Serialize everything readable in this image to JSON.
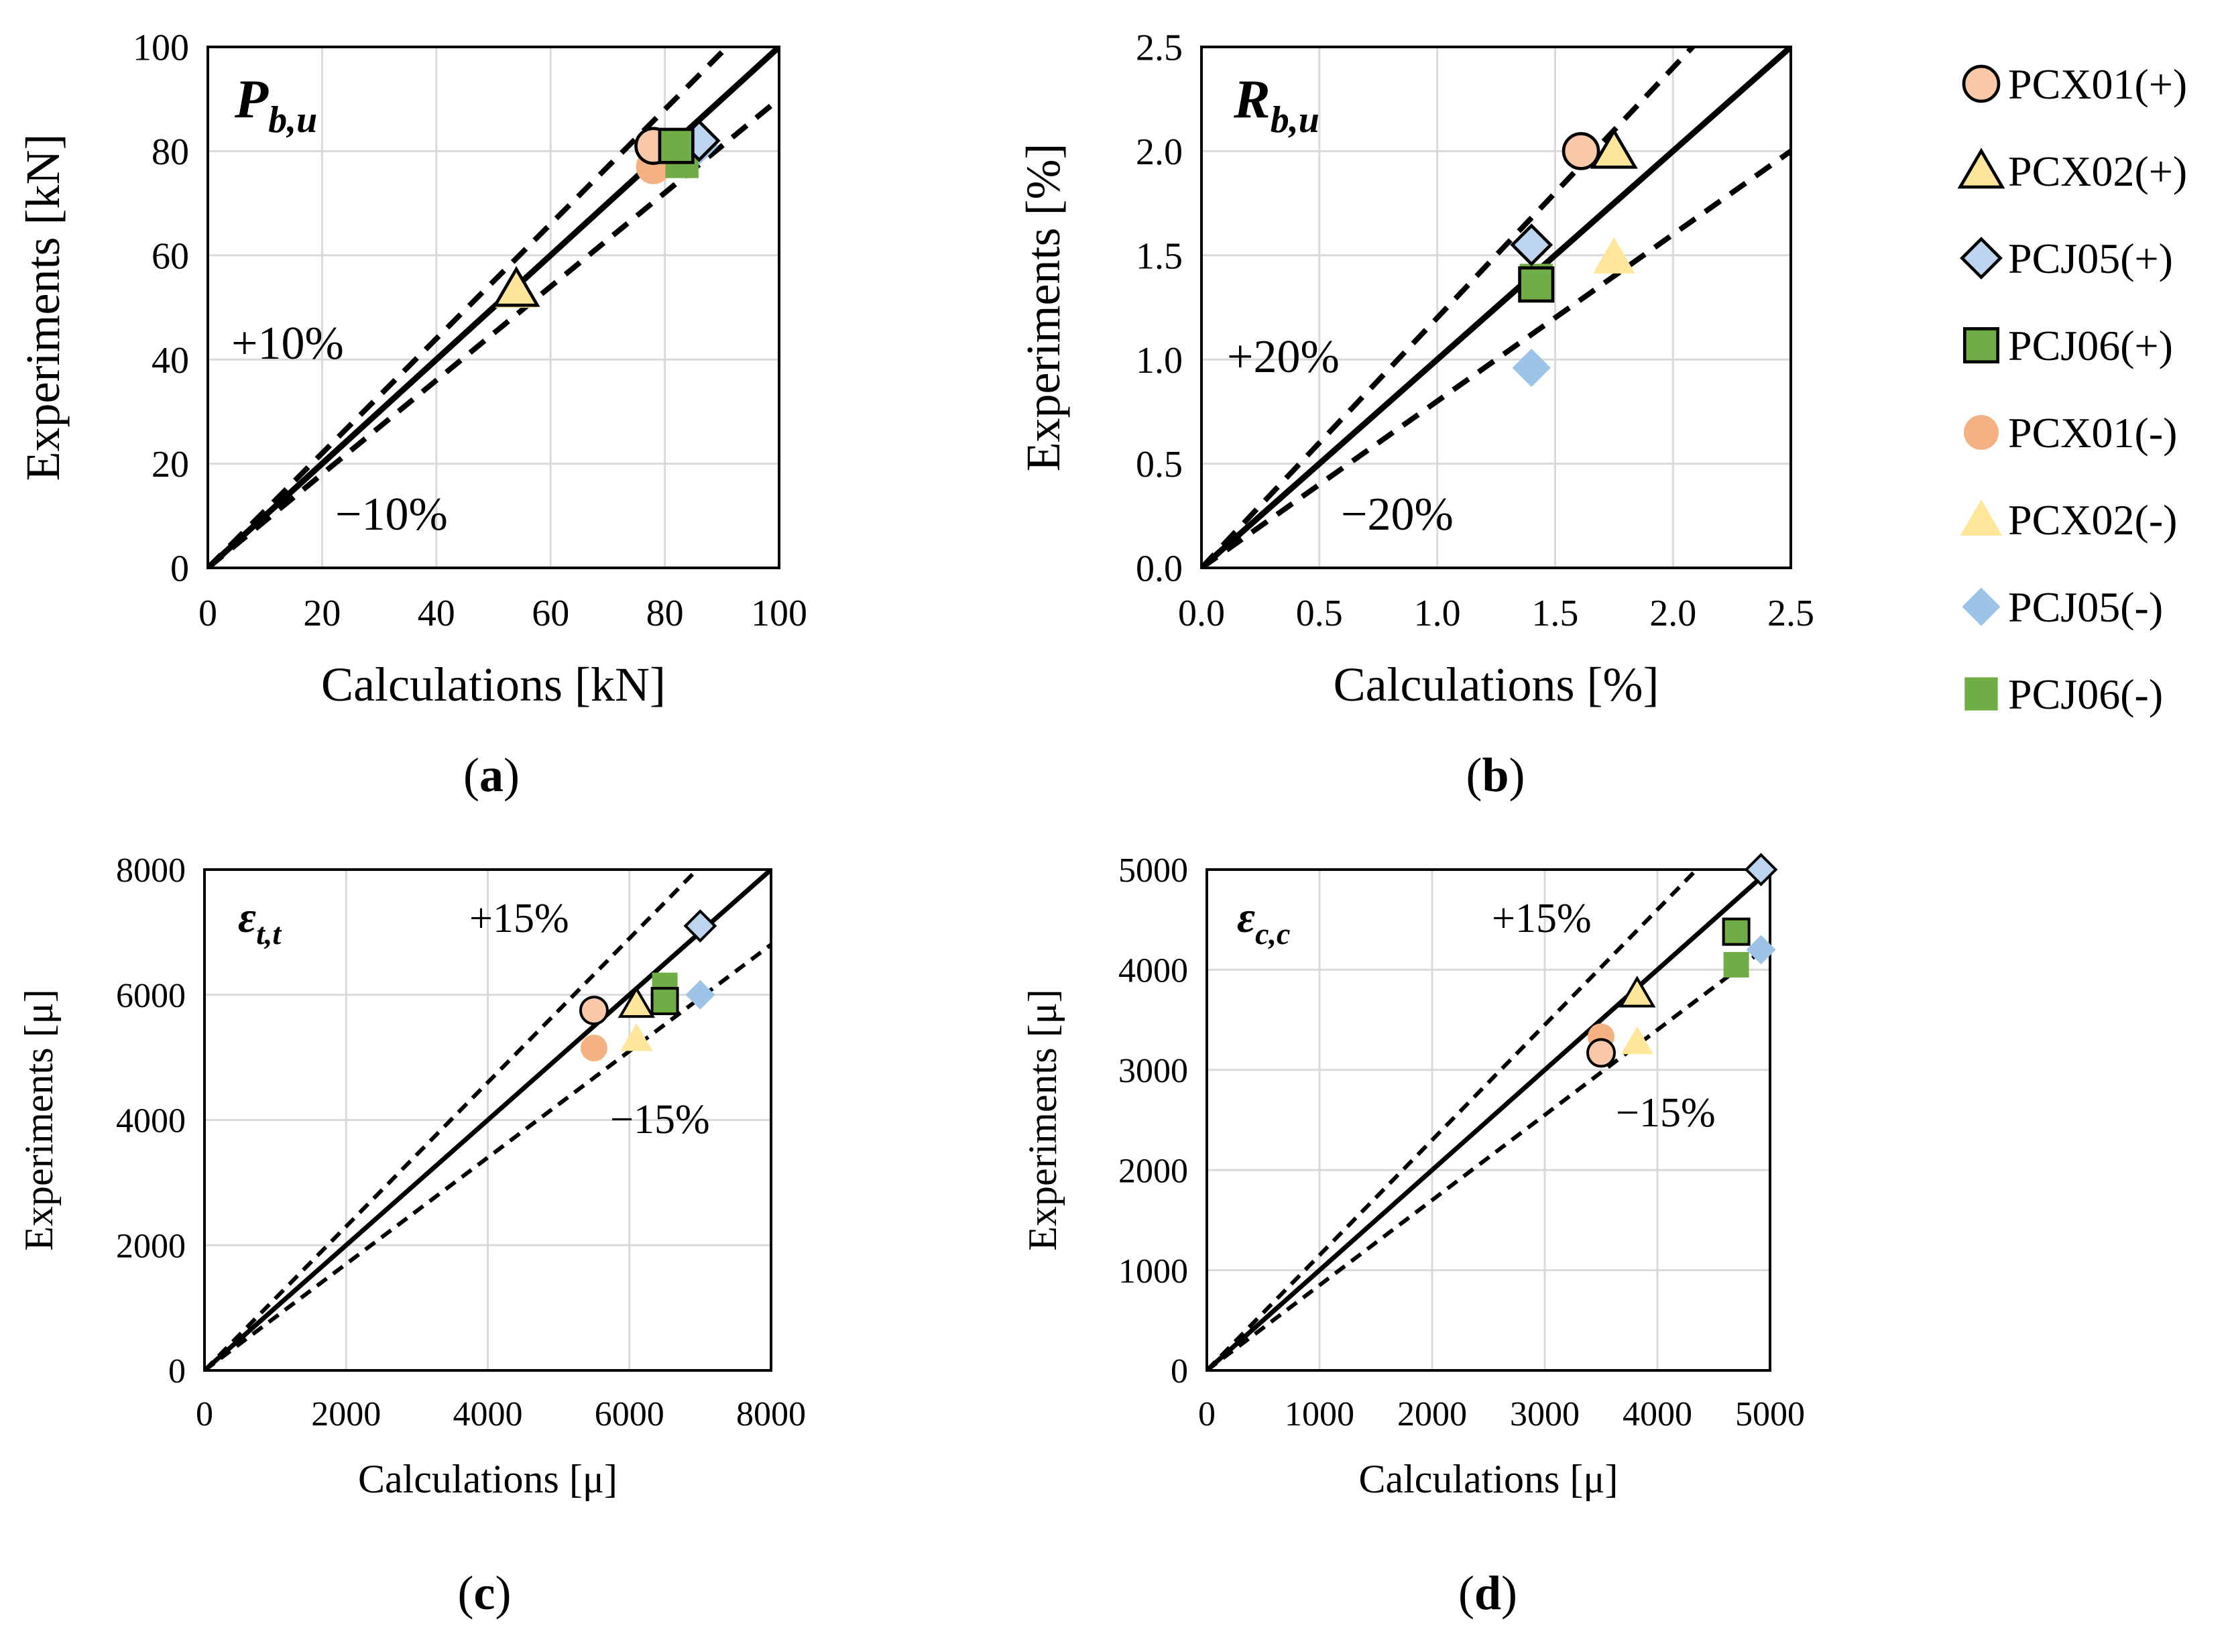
{
  "legend": [
    {
      "label": "PCX01(+)",
      "marker": "circle",
      "filled": false
    },
    {
      "label": "PCX02(+)",
      "marker": "triangle",
      "filled": false
    },
    {
      "label": "PCJ05(+)",
      "marker": "diamond",
      "filled": false
    },
    {
      "label": "PCJ06(+)",
      "marker": "square",
      "filled": false
    },
    {
      "label": "PCX01(-)",
      "marker": "circle",
      "filled": true
    },
    {
      "label": "PCX02(-)",
      "marker": "triangle",
      "filled": true
    },
    {
      "label": "PCJ05(-)",
      "marker": "diamond",
      "filled": true
    },
    {
      "label": "PCJ06(-)",
      "marker": "square",
      "filled": true
    }
  ],
  "colors": {
    "PCX01": "#f8c8a8",
    "PCX02": "#fde69a",
    "PCJ05": "#bcd4ee",
    "PCJ06": "#70ad47",
    "PCX01_light": "#f4b183",
    "PCX02_light": "#ffe699",
    "PCJ05_light": "#9dc3e6",
    "PCJ06_light": "#70ad47"
  },
  "chart_data": [
    {
      "id": "a",
      "type": "scatter",
      "panel_label": "a",
      "title": "P",
      "title_sub": "b,u",
      "xlabel": "Calculations [kN]",
      "ylabel": "Experiments [kN]",
      "xlim": [
        0,
        100
      ],
      "ylim": [
        0,
        100
      ],
      "xticks": [
        "0",
        "20",
        "40",
        "60",
        "80",
        "100"
      ],
      "yticks": [
        "0",
        "20",
        "40",
        "60",
        "80",
        "100"
      ],
      "tick_values": [
        0,
        20,
        40,
        60,
        80,
        100
      ],
      "band_upper": 1.1,
      "band_lower": 0.9,
      "band_upper_label": "+10%",
      "band_lower_label": "−10%",
      "series": [
        {
          "name": "PCX01(+)",
          "x": 78,
          "y": 81
        },
        {
          "name": "PCX02(+)",
          "x": 54,
          "y": 53.5
        },
        {
          "name": "PCJ05(+)",
          "x": 86,
          "y": 82
        },
        {
          "name": "PCJ06(+)",
          "x": 82,
          "y": 81
        },
        {
          "name": "PCX01(-)",
          "x": 78,
          "y": 77
        },
        {
          "name": "PCX02(-)",
          "x": 54,
          "y": 53
        },
        {
          "name": "PCJ05(-)",
          "x": 86,
          "y": 81
        },
        {
          "name": "PCJ06(-)",
          "x": 83,
          "y": 78
        }
      ]
    },
    {
      "id": "b",
      "type": "scatter",
      "panel_label": "b",
      "title": "R",
      "title_sub": "b,u",
      "xlabel": "Calculations [%]",
      "ylabel": "Experiments [%]",
      "xlim": [
        0,
        2.5
      ],
      "ylim": [
        0,
        2.5
      ],
      "xticks": [
        "0.0",
        "0.5",
        "1.0",
        "1.5",
        "2.0",
        "2.5"
      ],
      "yticks": [
        "0.0",
        "0.5",
        "1.0",
        "1.5",
        "2.0",
        "2.5"
      ],
      "tick_values": [
        0,
        0.5,
        1.0,
        1.5,
        2.0,
        2.5
      ],
      "band_upper": 1.2,
      "band_lower": 0.8,
      "band_upper_label": "+20%",
      "band_lower_label": "−20%",
      "series": [
        {
          "name": "PCX01(+)",
          "x": 1.61,
          "y": 2.0
        },
        {
          "name": "PCX02(+)",
          "x": 1.75,
          "y": 2.0
        },
        {
          "name": "PCJ05(+)",
          "x": 1.4,
          "y": 1.55
        },
        {
          "name": "PCJ06(+)",
          "x": 1.42,
          "y": 1.36
        },
        {
          "name": "PCX01(-)",
          "x": 1.61,
          "y": 2.0
        },
        {
          "name": "PCX02(-)",
          "x": 1.75,
          "y": 1.49
        },
        {
          "name": "PCJ05(-)",
          "x": 1.4,
          "y": 0.96
        },
        {
          "name": "PCJ06(-)",
          "x": 1.42,
          "y": 1.38
        }
      ]
    },
    {
      "id": "c",
      "type": "scatter",
      "panel_label": "c",
      "title": "ε",
      "title_sub": "t,t",
      "xlabel": "Calculations [μ]",
      "ylabel": "Experiments [μ]",
      "xlim": [
        0,
        8000
      ],
      "ylim": [
        0,
        8000
      ],
      "xticks": [
        "0",
        "2000",
        "4000",
        "6000",
        "8000"
      ],
      "yticks": [
        "0",
        "2000",
        "4000",
        "6000",
        "8000"
      ],
      "tick_values": [
        0,
        2000,
        4000,
        6000,
        8000
      ],
      "band_upper": 1.15,
      "band_lower": 0.85,
      "band_upper_label": "+15%",
      "band_lower_label": "−15%",
      "series": [
        {
          "name": "PCX01(+)",
          "x": 5500,
          "y": 5750
        },
        {
          "name": "PCX02(+)",
          "x": 6100,
          "y": 5850
        },
        {
          "name": "PCJ05(+)",
          "x": 7000,
          "y": 7100
        },
        {
          "name": "PCJ06(+)",
          "x": 6500,
          "y": 5900
        },
        {
          "name": "PCX01(-)",
          "x": 5500,
          "y": 5150
        },
        {
          "name": "PCX02(-)",
          "x": 6100,
          "y": 5300
        },
        {
          "name": "PCJ05(-)",
          "x": 7000,
          "y": 6000
        },
        {
          "name": "PCJ06(-)",
          "x": 6500,
          "y": 6150
        }
      ]
    },
    {
      "id": "d",
      "type": "scatter",
      "panel_label": "d",
      "title": "ε",
      "title_sub": "c,c",
      "xlabel": "Calculations [μ]",
      "ylabel": "Experiments [μ]",
      "xlim": [
        0,
        5000
      ],
      "ylim": [
        0,
        5000
      ],
      "xticks": [
        "0",
        "1000",
        "2000",
        "3000",
        "4000",
        "5000"
      ],
      "yticks": [
        "0",
        "1000",
        "2000",
        "3000",
        "4000",
        "5000"
      ],
      "tick_values": [
        0,
        1000,
        2000,
        3000,
        4000,
        5000
      ],
      "band_upper": 1.15,
      "band_lower": 0.85,
      "band_upper_label": "+15%",
      "band_lower_label": "−15%",
      "series": [
        {
          "name": "PCX01(+)",
          "x": 3500,
          "y": 3170
        },
        {
          "name": "PCX02(+)",
          "x": 3820,
          "y": 3760
        },
        {
          "name": "PCJ05(+)",
          "x": 4920,
          "y": 5000
        },
        {
          "name": "PCJ06(+)",
          "x": 4700,
          "y": 4380
        },
        {
          "name": "PCX01(-)",
          "x": 3500,
          "y": 3330
        },
        {
          "name": "PCX02(-)",
          "x": 3820,
          "y": 3280
        },
        {
          "name": "PCJ05(-)",
          "x": 4920,
          "y": 4200
        },
        {
          "name": "PCJ06(-)",
          "x": 4700,
          "y": 4050
        }
      ]
    }
  ]
}
